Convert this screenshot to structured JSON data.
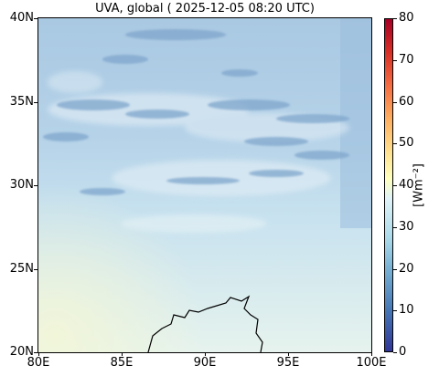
{
  "title": "UVA, global ( 2025-12-05 08:20 UTC)",
  "map": {
    "lon_range": [
      80,
      100
    ],
    "lat_range": [
      20,
      40
    ],
    "lat_ticks": [
      {
        "value": 40,
        "label": "40N"
      },
      {
        "value": 35,
        "label": "35N"
      },
      {
        "value": 30,
        "label": "30N"
      },
      {
        "value": 25,
        "label": "25N"
      },
      {
        "value": 20,
        "label": "20N"
      }
    ],
    "lon_ticks": [
      {
        "value": 80,
        "label": "80E"
      },
      {
        "value": 85,
        "label": "85E"
      },
      {
        "value": 90,
        "label": "90E"
      },
      {
        "value": 95,
        "label": "95E"
      },
      {
        "value": 100,
        "label": "100E"
      }
    ],
    "coastline": "Bay of Bengal / Ganges delta coastline near 86E-93E, 20N-23N"
  },
  "colorbar": {
    "label": "[Wm⁻²]",
    "range": [
      0,
      80
    ],
    "colormap": "RdYlBu_r",
    "ticks": [
      {
        "value": 80,
        "label": "80"
      },
      {
        "value": 70,
        "label": "70"
      },
      {
        "value": 60,
        "label": "60"
      },
      {
        "value": 50,
        "label": "50"
      },
      {
        "value": 40,
        "label": "40"
      },
      {
        "value": 30,
        "label": "30"
      },
      {
        "value": 20,
        "label": "20"
      },
      {
        "value": 10,
        "label": "10"
      },
      {
        "value": 0,
        "label": "0"
      }
    ]
  }
}
